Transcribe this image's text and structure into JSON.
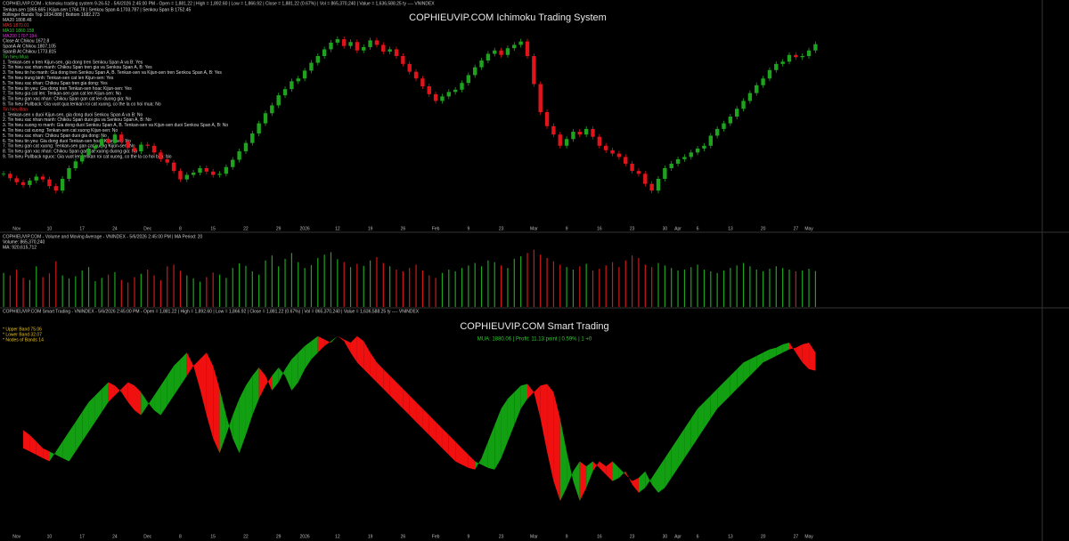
{
  "chart_data": [
    {
      "type": "candlestick",
      "title": "COPHIEUVIP.COM Ichimoku Trading System",
      "header": "COPHIEUVIP.COM - Ichimoku trading system 9-26-52 - 5/6/2026 2:45:00 PM - Open = 1,881.22 | High = 1,892.60 | Low = 1,866.92 | Close = 1,881.22 (0.67%) | Vol = 865,370,240 | Value = 1,636,588.25 ty ---- VNINDEX",
      "legend_lines": [
        "Tenkan-sen 1865.665 | Kijun-sen 1764.78 | Senkou Span A 1703.787 | Senkou Span B 1752.45",
        "Bollinger Bands Top 1934.888 | Bottom 1682.273",
        "MA20 1808.48",
        "MA5 1870.01",
        "MA10 1860.158",
        "MA200 1707.194",
        "Close At Chikou 1672.8",
        "SpanA At Chikou 1807.105",
        "SpanB At Chikou 1773.815",
        "Tin hieu Mua",
        "1. Tenkan-sen x tren Kijun-sen, gia dong tren Senkou Span A va B: Yes",
        "2. Tin hieu xac nhan manh: Chikou Span tren gia va Senkou Span A, B: Yes",
        "3. Tin hieu tin ho manh: Gia dong tren Senkou Span A, B. Tenkan-sen va Kijun-sen tren Senkou Span A, B: Yes",
        "4. Tin hieu trung binh: Tenkan-sen cat len Kijun-sen: Yes",
        "5. Tin hieu xac nhan: Chikou Span tren gia dong: Yes",
        "6. Tin hieu tin yeu: Gia dong tren Tenkan-sen hoac Kijun-sen: Yes",
        "7. Tin hieu gia cat len: Tenkan-sen gan cat len Kijun-sen: No",
        "8. Tin hieu gan xac nhan: Chikou Span gan cat len duong gia: No",
        "9. Tin hieu Pullback: Gia vuot qua tenkan roi cat xuong, co the la co hoi mua: No",
        "Tin hieu Ban",
        "1. Tenkan-sen x duoi Kijun-sen, gia dong duoi Senkou Span A va B: No",
        "2. Tin hieu xac nhan manh: Chikou Span duoi gia va Senkou Span A, B: No",
        "3. Tin hieu xuong ro manh: Gia dong duoi Senkou Span A, B. Tenkan-sen va Kijun-sen duoi Senkou Span A, B: No",
        "4. Tin hieu cat xuong: Tenkan-sen cat xuong Kijun-sen: No",
        "5. Tin hieu xac nhan: Chikou Span duoi gia dong: No",
        "6. Tin hieu tin yeu: Gia dong duoi Tenkan-sen hoac Kijun-sen: No",
        "7. Tin hieu gan cat xuong: Tenkan-sen gan cat xuong Kijun-sen: No",
        "8. Tin hieu gan xac nhan: Chikou Span gan cat xuong duong gia: No",
        "9. Tin hieu Pullback nguoc: Gia vuot len tenkan roi cat xuong, co the la co hoi ban: No"
      ],
      "categories": [
        null,
        null,
        "Nov",
        null,
        null,
        null,
        null,
        "10",
        null,
        null,
        null,
        null,
        "17",
        null,
        null,
        null,
        null,
        "24",
        null,
        null,
        null,
        null,
        "Dec",
        null,
        null,
        null,
        null,
        "8",
        null,
        null,
        null,
        null,
        "15",
        null,
        null,
        null,
        null,
        "22",
        null,
        null,
        null,
        null,
        "29",
        null,
        null,
        null,
        "2026",
        null,
        null,
        null,
        null,
        "12",
        null,
        null,
        null,
        null,
        "19",
        null,
        null,
        null,
        null,
        "26",
        null,
        null,
        null,
        null,
        "Feb",
        null,
        null,
        null,
        null,
        "9",
        null,
        null,
        null,
        null,
        "23",
        null,
        null,
        null,
        null,
        "Mar",
        null,
        null,
        null,
        null,
        "9",
        null,
        null,
        null,
        null,
        "16",
        null,
        null,
        null,
        null,
        "23",
        null,
        null,
        null,
        null,
        "30",
        null,
        "Apr",
        null,
        null,
        "6",
        null,
        null,
        null,
        null,
        "13",
        null,
        null,
        null,
        null,
        "20",
        null,
        null,
        null,
        null,
        "27",
        null,
        "May",
        null
      ],
      "closes": [
        1650,
        1642,
        1635,
        1630,
        1638,
        1645,
        1640,
        1628,
        1620,
        1641,
        1660,
        1672,
        1683,
        1695,
        1700,
        1712,
        1705,
        1720,
        1708,
        1696,
        1690,
        1702,
        1700,
        1688,
        1676,
        1670,
        1655,
        1640,
        1648,
        1652,
        1660,
        1654,
        1648,
        1650,
        1662,
        1675,
        1690,
        1705,
        1722,
        1740,
        1758,
        1772,
        1790,
        1801,
        1815,
        1820,
        1834,
        1848,
        1860,
        1872,
        1884,
        1890,
        1878,
        1885,
        1870,
        1876,
        1888,
        1880,
        1868,
        1872,
        1860,
        1846,
        1832,
        1820,
        1806,
        1792,
        1780,
        1788,
        1796,
        1800,
        1812,
        1826,
        1840,
        1852,
        1864,
        1870,
        1862,
        1874,
        1880,
        1886,
        1860,
        1810,
        1760,
        1735,
        1720,
        1700,
        1712,
        1725,
        1720,
        1730,
        1716,
        1700,
        1692,
        1686,
        1680,
        1668,
        1655,
        1650,
        1632,
        1620,
        1641,
        1660,
        1668,
        1676,
        1680,
        1688,
        1695,
        1700,
        1718,
        1730,
        1740,
        1752,
        1766,
        1780,
        1794,
        1808,
        1820,
        1835,
        1846,
        1850,
        1862,
        1858,
        1860,
        1870,
        1881.22
      ],
      "ylim": [
        1560,
        1960
      ],
      "color_up": "#1fa31f",
      "color_down": "#e0141a"
    },
    {
      "type": "bar",
      "header": "COPHIEUVIP.COM - Volume and Moving Average - VNINDEX - 5/6/2026 2:45:00 PM | MA Period: 20",
      "legend_lines": [
        "Volume: 865,370,240",
        "MA: 920,615,712"
      ],
      "values": [
        820,
        760,
        900,
        700,
        650,
        980,
        720,
        810,
        1100,
        760,
        690,
        740,
        880,
        960,
        620,
        700,
        780,
        840,
        650,
        590,
        720,
        800,
        900,
        760,
        640,
        980,
        1020,
        870,
        760,
        690,
        610,
        720,
        830,
        780,
        700,
        940,
        1050,
        990,
        860,
        780,
        1120,
        1240,
        980,
        1160,
        1300,
        1080,
        940,
        1010,
        1180,
        1260,
        1320,
        1150,
        1080,
        960,
        1040,
        990,
        1120,
        1200,
        1060,
        980,
        900,
        860,
        940,
        1020,
        880,
        760,
        700,
        820,
        900,
        860,
        940,
        1000,
        1060,
        980,
        1120,
        1080,
        1000,
        940,
        1160,
        1220,
        1300,
        1380,
        1260,
        1180,
        1100,
        1020,
        960,
        900,
        980,
        1040,
        880,
        920,
        1000,
        1080,
        960,
        1120,
        1240,
        1180,
        1020,
        960,
        1060,
        1000,
        940,
        880,
        900,
        960,
        1020,
        900,
        860,
        820,
        880,
        940,
        1000,
        1060,
        980,
        900,
        860,
        920,
        980,
        940,
        900,
        860,
        880,
        920,
        865.37
      ],
      "ylim": [
        0,
        1500
      ]
    },
    {
      "type": "ribbon",
      "title": "COPHIEUVIP.COM Smart Trading",
      "header": "COPHIEUVIP.COM Smart Trading - VNINDEX - 5/6/2026 2:45:00 PM - Open = 1,881.22 | High = 1,892.60 | Low = 1,866.92 | Close = 1,881.22 (0.67%) | Vol = 865,370,240 | Value = 1,636,588.25 ty ---- VNINDEX",
      "legend_lines": [
        "* Upper Band   75.06",
        "* Lower Band   32.07",
        "* Nodes of Bands   14"
      ],
      "signal": "MUA: 1880.06 | Profit: 11.13 point | 0.59% | 1 +0",
      "values": [
        43,
        40,
        36,
        32,
        30,
        28,
        26,
        24,
        30,
        36,
        42,
        48,
        54,
        60,
        64,
        68,
        72,
        70,
        66,
        60,
        55,
        52,
        58,
        64,
        70,
        76,
        82,
        86,
        90,
        82,
        68,
        52,
        38,
        29,
        40,
        52,
        62,
        70,
        76,
        81,
        76,
        67,
        72,
        80,
        86,
        90,
        94,
        97,
        100,
        98,
        96,
        100,
        97,
        90,
        84,
        80,
        76,
        72,
        68,
        64,
        60,
        56,
        52,
        48,
        44,
        40,
        36,
        32,
        28,
        24,
        22,
        20,
        19,
        26,
        36,
        46,
        56,
        62,
        66,
        70,
        71,
        66,
        50,
        30,
        12,
        0,
        8,
        18,
        24,
        21,
        24,
        20,
        16,
        12,
        14,
        18,
        10,
        5,
        8,
        14,
        20,
        26,
        32,
        38,
        44,
        50,
        56,
        60,
        64,
        68,
        72,
        76,
        80,
        84,
        86,
        88,
        90,
        92,
        93,
        95,
        96,
        90,
        84,
        80,
        79
      ],
      "ylim": [
        -20,
        115
      ],
      "color_up": "#12a012",
      "color_down": "#f01010"
    }
  ]
}
